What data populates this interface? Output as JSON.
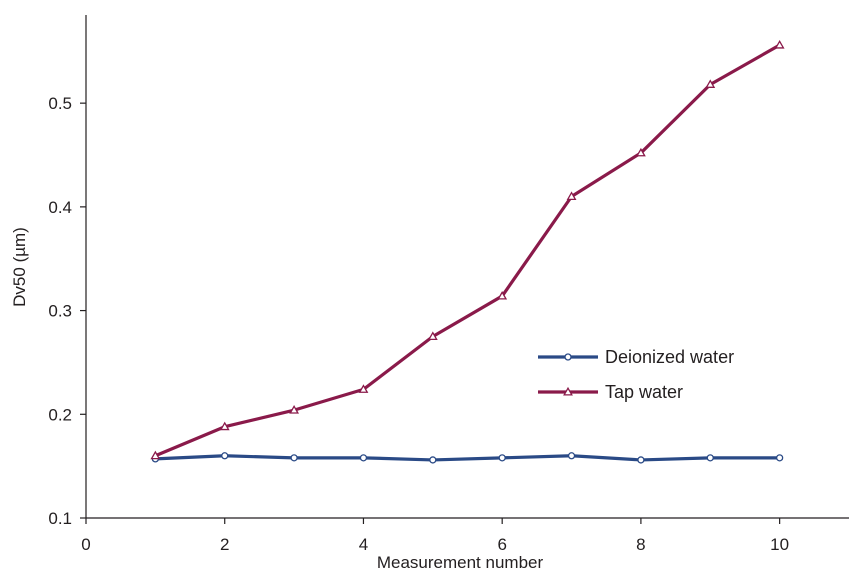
{
  "chart_data": {
    "type": "line",
    "xlabel": "Measurement number",
    "ylabel": "Dv50 (µm)",
    "xlim": [
      0,
      11
    ],
    "ylim": [
      0.1,
      0.585
    ],
    "xticks": [
      0,
      2,
      4,
      6,
      8,
      10
    ],
    "yticks": [
      0.1,
      0.2,
      0.3,
      0.4,
      0.5
    ],
    "xtick_labels": [
      "0",
      "2",
      "4",
      "6",
      "8",
      "10"
    ],
    "ytick_labels": [
      "0.1",
      "0.2",
      "0.3",
      "0.4",
      "0.5"
    ],
    "grid": false,
    "legend_position": "center-right",
    "series": [
      {
        "name": "Deionized water",
        "color": "#2a4a86",
        "marker": "circle",
        "x": [
          1,
          2,
          3,
          4,
          5,
          6,
          7,
          8,
          9,
          10
        ],
        "values": [
          0.157,
          0.16,
          0.158,
          0.158,
          0.156,
          0.158,
          0.16,
          0.156,
          0.158,
          0.158
        ]
      },
      {
        "name": "Tap water",
        "color": "#8a1a4a",
        "marker": "triangle",
        "x": [
          1,
          2,
          3,
          4,
          5,
          6,
          7,
          8,
          9,
          10
        ],
        "values": [
          0.16,
          0.188,
          0.204,
          0.224,
          0.275,
          0.314,
          0.41,
          0.452,
          0.518,
          0.556
        ]
      }
    ]
  }
}
